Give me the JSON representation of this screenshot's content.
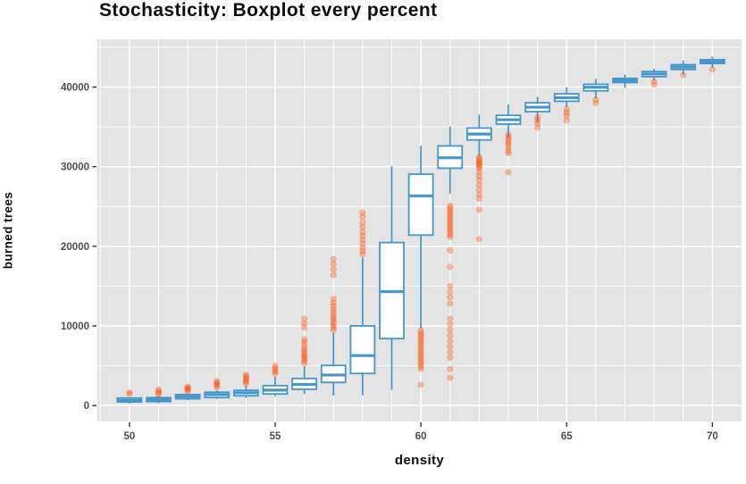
{
  "title": "Stochasticity: Boxplot every percent",
  "colors": {
    "panel_background": "#e4e4e4",
    "gridline": "#ffffff",
    "box_stroke": "#4697c9",
    "box_fill": "#ffffff",
    "outlier": "#fc4e07",
    "tick_label": "#4d4d4d",
    "tick_mark": "#333333",
    "text": "#0e0e0e"
  },
  "chart_data": {
    "type": "boxplot",
    "title": "Stochasticity: Boxplot every percent",
    "xlabel": "density",
    "ylabel": "burned trees",
    "xlim": [
      48.9,
      71.0
    ],
    "ylim": [
      -2000,
      46000
    ],
    "x_ticks": [
      50,
      55,
      60,
      65,
      70
    ],
    "x_gridlines": [
      49,
      50,
      51,
      52,
      53,
      54,
      55,
      56,
      57,
      58,
      59,
      60,
      61,
      62,
      63,
      64,
      65,
      66,
      67,
      68,
      69,
      70
    ],
    "y_ticks": [
      0,
      10000,
      20000,
      30000,
      40000
    ],
    "y_minor_gridlines": [
      5000,
      15000,
      25000,
      35000,
      45000
    ],
    "grid": true,
    "legend": "none",
    "boxes": [
      {
        "x": 50,
        "low": 260,
        "q1": 450,
        "median": 650,
        "q3": 950,
        "high": 1080,
        "outliers": [
          1500,
          1650
        ]
      },
      {
        "x": 51,
        "low": 290,
        "q1": 500,
        "median": 750,
        "q3": 1000,
        "high": 1190,
        "outliers": [
          1400,
          1600,
          1800,
          2000
        ]
      },
      {
        "x": 52,
        "low": 670,
        "q1": 850,
        "median": 1120,
        "q3": 1380,
        "high": 1490,
        "outliers": [
          1800,
          1950,
          2100,
          2250,
          2350
        ]
      },
      {
        "x": 53,
        "low": 820,
        "q1": 1010,
        "median": 1380,
        "q3": 1680,
        "high": 1910,
        "outliers": [
          2300,
          2500,
          2700,
          2900,
          3050
        ]
      },
      {
        "x": 54,
        "low": 960,
        "q1": 1230,
        "median": 1600,
        "q3": 1910,
        "high": 2530,
        "outliers": [
          2800,
          3000,
          3200,
          3450,
          3700,
          3850
        ]
      },
      {
        "x": 55,
        "low": 1150,
        "q1": 1460,
        "median": 1940,
        "q3": 2500,
        "high": 3650,
        "outliers": [
          4050,
          4250,
          4500,
          4750,
          5000
        ]
      },
      {
        "x": 56,
        "low": 1460,
        "q1": 2050,
        "median": 2650,
        "q3": 3400,
        "high": 4950,
        "outliers": [
          5300,
          5600,
          5900,
          6100,
          6300,
          6600,
          6900,
          7200,
          7600,
          8000,
          8330,
          9800,
          10300,
          10900
        ]
      },
      {
        "x": 57,
        "low": 1270,
        "q1": 2910,
        "median": 3840,
        "q3": 5040,
        "high": 9150,
        "outliers": [
          9500,
          9800,
          10100,
          10400,
          10700,
          11000,
          11300,
          11700,
          12100,
          12500,
          12900,
          13400,
          16400,
          17100,
          17800,
          18400
        ]
      },
      {
        "x": 58,
        "low": 1300,
        "q1": 4030,
        "median": 6280,
        "q3": 10010,
        "high": 18600,
        "outliers": [
          19000,
          19400,
          19800,
          20300,
          20800,
          21300,
          21800,
          22400,
          23000,
          23700,
          24240
        ]
      },
      {
        "x": 59,
        "low": 1940,
        "q1": 8410,
        "median": 14300,
        "q3": 20470,
        "high": 30100,
        "outliers": []
      },
      {
        "x": 60,
        "low": 9640,
        "q1": 21410,
        "median": 26340,
        "q3": 29060,
        "high": 32610,
        "outliers": [
          9400,
          9100,
          8800,
          8500,
          8200,
          7900,
          7600,
          7300,
          7000,
          6700,
          6400,
          6100,
          5800,
          5500,
          5200,
          4900,
          4600,
          2600
        ]
      },
      {
        "x": 61,
        "low": 26630,
        "q1": 29810,
        "median": 31120,
        "q3": 32610,
        "high": 35040,
        "outliers": [
          25100,
          24800,
          24500,
          24200,
          23900,
          23600,
          23300,
          23000,
          22700,
          22400,
          22100,
          21800,
          21500,
          21200,
          19500,
          17400,
          15000,
          14300,
          13600,
          12800,
          10900,
          10200,
          9500,
          8800,
          8100,
          7400,
          6700,
          6000,
          4600,
          3500
        ]
      },
      {
        "x": 62,
        "low": 31310,
        "q1": 33360,
        "median": 34100,
        "q3": 34860,
        "high": 36540,
        "outliers": [
          31200,
          31000,
          30800,
          30600,
          30400,
          30200,
          30000,
          29800,
          29300,
          28800,
          28300,
          27700,
          27100,
          26500,
          26000,
          24600,
          20900
        ]
      },
      {
        "x": 63,
        "low": 33700,
        "q1": 35350,
        "median": 35900,
        "q3": 36450,
        "high": 37800,
        "outliers": [
          34000,
          33700,
          33400,
          33100,
          32800,
          32400,
          32000,
          31700,
          29300
        ]
      },
      {
        "x": 64,
        "low": 35600,
        "q1": 36910,
        "median": 37470,
        "q3": 38030,
        "high": 38780,
        "outliers": [
          36200,
          35800,
          35400,
          34900
        ]
      },
      {
        "x": 65,
        "low": 37470,
        "q1": 38220,
        "median": 38670,
        "q3": 39150,
        "high": 39970,
        "outliers": [
          37200,
          36800,
          36400,
          35800
        ]
      },
      {
        "x": 66,
        "low": 38600,
        "q1": 39520,
        "median": 39970,
        "q3": 40350,
        "high": 41020,
        "outliers": [
          38400,
          38000
        ]
      },
      {
        "x": 67,
        "low": 39900,
        "q1": 40570,
        "median": 40830,
        "q3": 41090,
        "high": 41590,
        "outliers": []
      },
      {
        "x": 68,
        "low": 40830,
        "q1": 41310,
        "median": 41650,
        "q3": 41950,
        "high": 42320,
        "outliers": [
          40700,
          40300
        ]
      },
      {
        "x": 69,
        "low": 41590,
        "q1": 42210,
        "median": 42510,
        "q3": 42810,
        "high": 43330,
        "outliers": [
          41500
        ]
      },
      {
        "x": 70,
        "low": 42430,
        "q1": 42960,
        "median": 43180,
        "q3": 43440,
        "high": 43820,
        "outliers": [
          42200
        ]
      }
    ]
  }
}
